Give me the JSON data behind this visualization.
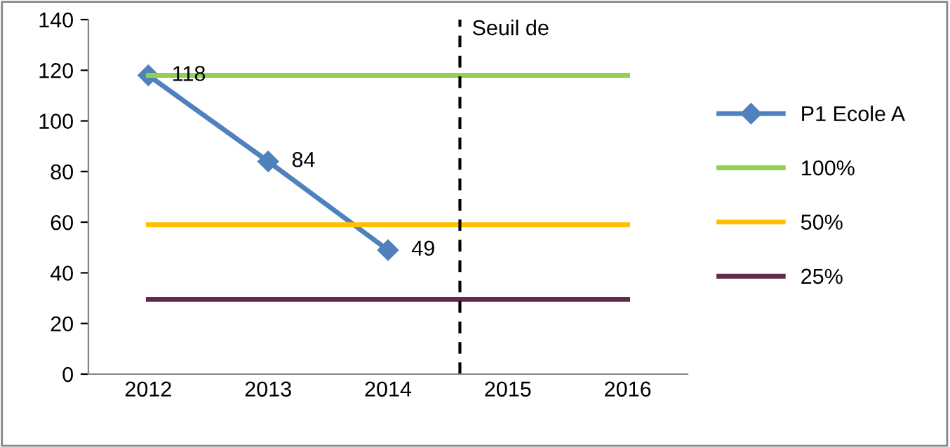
{
  "chart_data": {
    "type": "line",
    "x": [
      2012,
      2013,
      2014,
      2015,
      2016
    ],
    "xlim": [
      2011.5,
      2016.5
    ],
    "xticks": [
      2012,
      2013,
      2014,
      2015,
      2016
    ],
    "ylim": [
      0,
      140
    ],
    "yticks": [
      0,
      20,
      40,
      60,
      80,
      100,
      120,
      140
    ],
    "series": [
      {
        "name": "P1 Ecole A",
        "color": "#4f81bd",
        "values": [
          118,
          84,
          49,
          null,
          null
        ],
        "marker": "diamond",
        "value_labels": [
          "118",
          "84",
          "49",
          null,
          null
        ]
      },
      {
        "name": "100%",
        "color": "#92d050",
        "values": [
          118,
          118,
          118,
          118,
          118
        ]
      },
      {
        "name": "50%",
        "color": "#ffc000",
        "values": [
          59,
          59,
          59,
          59,
          59
        ]
      },
      {
        "name": "25%",
        "color": "#632b4e",
        "values": [
          29.5,
          29.5,
          29.5,
          29.5,
          29.5
        ]
      }
    ],
    "ref_lines": [
      {
        "axis": "x",
        "value": 2014.6,
        "label": "Seuil de",
        "color": "#000000",
        "line_style": "dashed"
      }
    ],
    "legend": "right",
    "grid": false
  }
}
